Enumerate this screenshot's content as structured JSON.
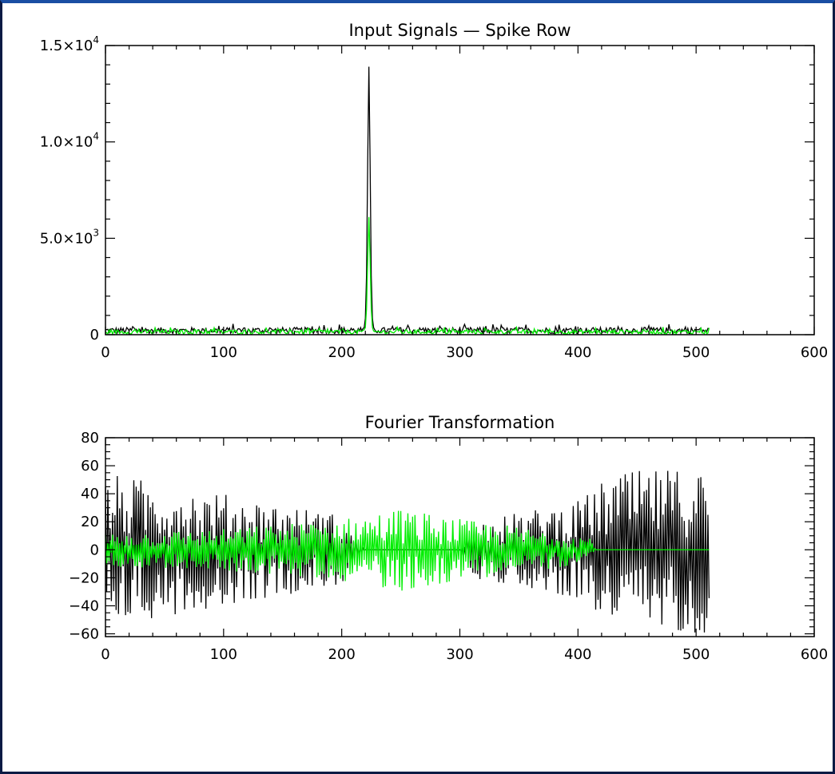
{
  "chart_data": [
    {
      "type": "line",
      "title": "Input Signals — Spike Row",
      "xlim": [
        0,
        600
      ],
      "ylim": [
        0,
        15000
      ],
      "x_ticks": [
        {
          "value": 0,
          "label": "0"
        },
        {
          "value": 100,
          "label": "100"
        },
        {
          "value": 200,
          "label": "200"
        },
        {
          "value": 300,
          "label": "300"
        },
        {
          "value": 400,
          "label": "400"
        },
        {
          "value": 500,
          "label": "500"
        },
        {
          "value": 600,
          "label": "600"
        }
      ],
      "y_ticks": [
        {
          "value": 0,
          "base": "0",
          "exp": ""
        },
        {
          "value": 5000,
          "base": "5.0×10",
          "exp": "3"
        },
        {
          "value": 10000,
          "base": "1.0×10",
          "exp": "4"
        },
        {
          "value": 15000,
          "base": "1.5×10",
          "exp": "4"
        }
      ],
      "grid": false,
      "series": [
        {
          "color": "#000000",
          "n_points": 512,
          "x_step": 1,
          "baseline": [
            60,
            380
          ],
          "peak": {
            "x": 223,
            "y": 13900
          }
        },
        {
          "color": "#00ee00",
          "n_points": 512,
          "x_step": 1,
          "baseline": [
            30,
            260
          ],
          "peak": {
            "x": 223,
            "y": 6100
          }
        }
      ]
    },
    {
      "type": "line",
      "title": "Fourier Transformation",
      "xlim": [
        0,
        600
      ],
      "ylim": [
        -62,
        80
      ],
      "x_ticks": [
        {
          "value": 0,
          "label": "0"
        },
        {
          "value": 100,
          "label": "100"
        },
        {
          "value": 200,
          "label": "200"
        },
        {
          "value": 300,
          "label": "300"
        },
        {
          "value": 400,
          "label": "400"
        },
        {
          "value": 500,
          "label": "500"
        },
        {
          "value": 600,
          "label": "600"
        }
      ],
      "y_ticks": [
        {
          "value": -60,
          "label": "−60"
        },
        {
          "value": -40,
          "label": "−40"
        },
        {
          "value": -20,
          "label": "−20"
        },
        {
          "value": 0,
          "label": "0"
        },
        {
          "value": 20,
          "label": "20"
        },
        {
          "value": 40,
          "label": "40"
        },
        {
          "value": 60,
          "label": "60"
        },
        {
          "value": 80,
          "label": "80"
        }
      ],
      "grid": false,
      "series": [
        {
          "color": "#000000",
          "n_points": 512,
          "x_step": 1,
          "amplitude_envelope": [
            [
              0,
              55
            ],
            [
              100,
              40
            ],
            [
              200,
              25
            ],
            [
              220,
              0
            ],
            [
              300,
              0
            ],
            [
              310,
              20
            ],
            [
              400,
              35
            ],
            [
              430,
              55
            ],
            [
              511,
              60
            ]
          ]
        },
        {
          "color": "#00ee00",
          "n_points": 512,
          "x_step": 1,
          "amplitude_envelope": [
            [
              0,
              12
            ],
            [
              100,
              15
            ],
            [
              200,
              22
            ],
            [
              250,
              30
            ],
            [
              300,
              22
            ],
            [
              410,
              10
            ],
            [
              415,
              0
            ],
            [
              511,
              0
            ]
          ]
        }
      ]
    }
  ]
}
